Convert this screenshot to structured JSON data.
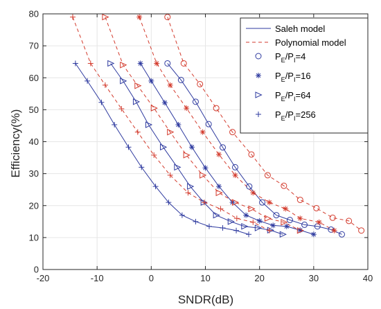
{
  "chart_data": {
    "type": "line",
    "xlabel": "SNDR(dB)",
    "ylabel": "Efficiency(%)",
    "xlim": [
      -20,
      40
    ],
    "ylim": [
      0,
      80
    ],
    "xticks": [
      -20,
      -10,
      0,
      10,
      20,
      30,
      40
    ],
    "yticks": [
      0,
      10,
      20,
      30,
      40,
      50,
      60,
      70,
      80
    ],
    "grid": true,
    "legend_position": "top-right",
    "legend": {
      "saleh": "Saleh model",
      "poly": "Polynomial model",
      "items": [
        {
          "base": "P",
          "sub1": "E",
          "mid": "/P",
          "sub2": "I",
          "tail": "=4",
          "marker": "circle"
        },
        {
          "base": "P",
          "sub1": "E",
          "mid": "/P",
          "sub2": "I",
          "tail": "=16",
          "marker": "star"
        },
        {
          "base": "P",
          "sub1": "E",
          "mid": "/P",
          "sub2": "I",
          "tail": "=64",
          "marker": "triangle-right"
        },
        {
          "base": "P",
          "sub1": "E",
          "mid": "/P",
          "sub2": "I",
          "tail": "=256",
          "marker": "plus"
        }
      ]
    },
    "colors": {
      "saleh": "#2e3a9f",
      "poly": "#d33a2c",
      "grid": "#e6e6e6",
      "axis": "#262626"
    },
    "series": [
      {
        "model": "saleh",
        "marker": "circle",
        "x": [
          3,
          5.5,
          8.2,
          10.6,
          13.2,
          15.5,
          18.1,
          20.5,
          23.1,
          25.6,
          28.3,
          30.7,
          33.2,
          35.2
        ],
        "y": [
          64.5,
          59.3,
          52.5,
          45.5,
          38.2,
          32,
          26,
          21,
          17,
          15.5,
          14,
          13.5,
          12.5,
          11
        ]
      },
      {
        "model": "saleh",
        "marker": "star",
        "x": [
          -2,
          0,
          2.5,
          5,
          7.5,
          10,
          12.5,
          15,
          17.5,
          20,
          22.5,
          25,
          27.5,
          30
        ],
        "y": [
          64.5,
          59,
          52.2,
          45.3,
          38.3,
          31.8,
          26,
          21,
          17,
          15.2,
          13.8,
          13.5,
          12.3,
          11
        ]
      },
      {
        "model": "saleh",
        "marker": "triangle-right",
        "x": [
          -7.5,
          -5.2,
          -2.8,
          -0.5,
          2.2,
          4.8,
          7.2,
          9.7,
          12,
          14.7,
          17.2,
          19.7,
          22,
          24.3
        ],
        "y": [
          64.5,
          59,
          52.5,
          45.3,
          38.3,
          32,
          26,
          21,
          17,
          15,
          13.5,
          13,
          12.3,
          11
        ]
      },
      {
        "model": "saleh",
        "marker": "plus",
        "x": [
          -14,
          -11.8,
          -9.2,
          -6.8,
          -4.2,
          -1.8,
          0.8,
          3.2,
          5.7,
          8.2,
          10.7,
          13.2,
          15.7,
          18
        ],
        "y": [
          64.5,
          59,
          52.3,
          45.3,
          38.3,
          32,
          26,
          21,
          17,
          15,
          13.5,
          13,
          12.2,
          11
        ]
      },
      {
        "model": "poly",
        "marker": "circle",
        "x": [
          3,
          6,
          9,
          12,
          15,
          18.5,
          21.5,
          24.5,
          27.5,
          30.5,
          33.5,
          36.5,
          38.8
        ],
        "y": [
          79,
          64.5,
          58,
          50.5,
          43,
          36,
          29.5,
          26.2,
          21.8,
          19.2,
          16.2,
          15.2,
          12.2
        ]
      },
      {
        "model": "poly",
        "marker": "star",
        "x": [
          -2.2,
          1,
          3.5,
          6.5,
          9.5,
          12.5,
          15.5,
          18.8,
          21.8,
          24.8,
          27.5,
          31,
          33.8
        ],
        "y": [
          79,
          64.5,
          57.7,
          50.5,
          43,
          36,
          29.5,
          24,
          21,
          19,
          16,
          14.8,
          12.2
        ]
      },
      {
        "model": "poly",
        "marker": "triangle-right",
        "x": [
          -8.5,
          -5.2,
          -2.5,
          0.5,
          3.5,
          6.5,
          9.5,
          12.5,
          15.5,
          18.5,
          21.5,
          24.5,
          27.5
        ],
        "y": [
          79,
          64,
          57.5,
          50.5,
          43,
          35.8,
          29.5,
          24,
          21,
          19,
          16,
          14.8,
          12.2
        ]
      },
      {
        "model": "poly",
        "marker": "plus",
        "x": [
          -14.5,
          -11.2,
          -8.5,
          -5.5,
          -2.5,
          0.5,
          3.5,
          6.8,
          9.8,
          12.8,
          15.8,
          18.8,
          21.8
        ],
        "y": [
          79,
          64.5,
          57.7,
          50.3,
          43,
          35.8,
          29.5,
          24,
          21,
          19,
          16,
          14.8,
          12.2
        ]
      }
    ]
  }
}
